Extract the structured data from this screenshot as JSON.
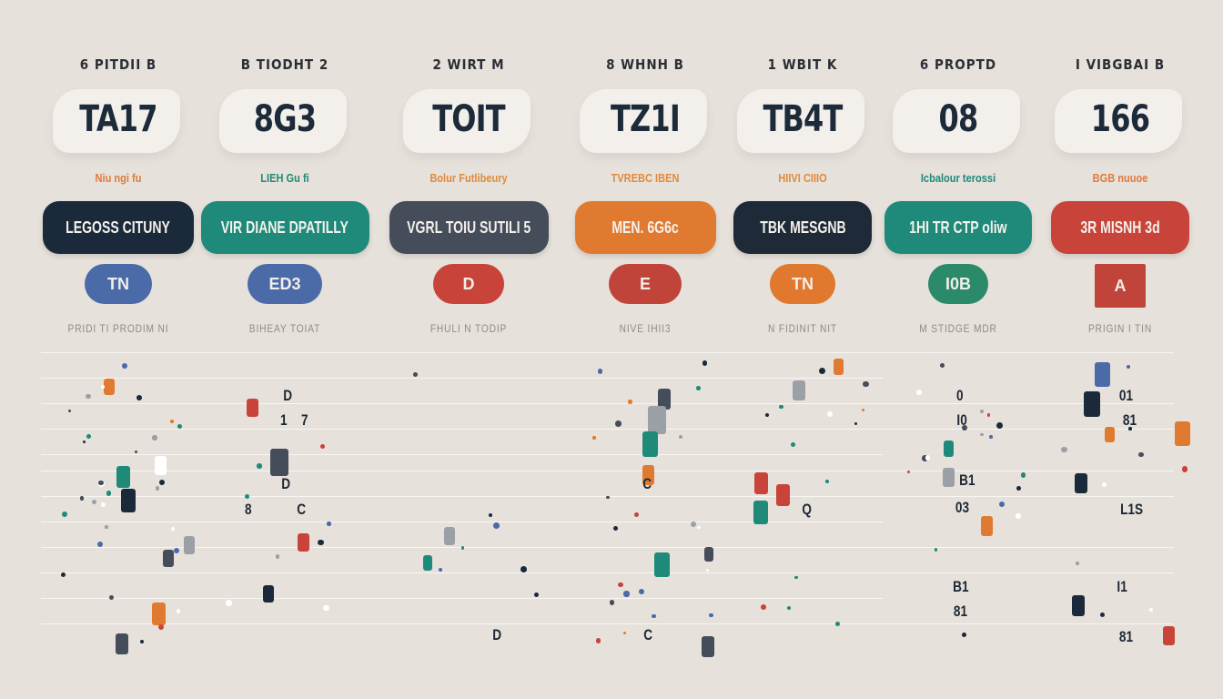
{
  "columns": [
    {
      "header": "6 PITDII B",
      "score": "TA17",
      "sub": "Niu ngi fu",
      "sub_color": "#e07a3a",
      "pill": "LEGOSS CITUNY",
      "pill_color": "#1b2a3a",
      "badge": "TN",
      "badge_color": "#4a6aa8",
      "foot": "PRIDI TI PRODIM NI"
    },
    {
      "header": "B TIODHT 2",
      "score": "8G3",
      "sub": "LIEH Gu fi",
      "sub_color": "#1f8a7a",
      "pill": "VIR DIANE DPATILLY",
      "pill_color": "#1f8a7a",
      "badge": "ED3",
      "badge_color": "#4a6aa8",
      "foot": "BIHEAY TOIAT"
    },
    {
      "header": "2 WIRT M",
      "score": "TOIT",
      "sub": "Bolur Futlibeury",
      "sub_color": "#e08a3a",
      "pill": "VGRL TOIU SUTILI 5",
      "pill_color": "#454c5a",
      "badge": "D",
      "badge_color": "#c8443a",
      "foot": "FHULI N TODIP"
    },
    {
      "header": "8 WHNH B",
      "score": "TZ1I",
      "sub": "TVREBC IBEN",
      "sub_color": "#e08a3a",
      "pill": "MEN. 6G6c",
      "pill_color": "#e07a30",
      "badge": "E",
      "badge_color": "#c0443a",
      "foot": "NIVE IHII3"
    },
    {
      "header": "1 WBIT K",
      "score": "TB4T",
      "sub": "HIIVI CIIIO",
      "sub_color": "#e08a3a",
      "pill": "TBK MESGNB",
      "pill_color": "#1e2a38",
      "badge": "TN",
      "badge_color": "#e0782e",
      "foot": "N FIDINIT NIT"
    },
    {
      "header": "6 PROPTD",
      "score": "08",
      "sub": "Icbalour terossi",
      "sub_color": "#1f8a7a",
      "pill": "1HI TR CTP oliw",
      "pill_color": "#1f8a7a",
      "badge": "I0B",
      "badge_color": "#2a8a6a",
      "foot": "M STIDGE MDR"
    },
    {
      "header": "I VIBGBAI B",
      "score": "166",
      "sub": "BGB nuuoe",
      "sub_color": "#e07a3a",
      "pill": "3R MISNH 3d",
      "pill_color": "#c8443a",
      "badge": "A",
      "badge_color": "#c0443a",
      "foot": "PRIGIN I TIN"
    }
  ],
  "grid_text": [
    "D",
    "1",
    "7",
    "D",
    "8",
    "C",
    "C",
    "Q",
    "D",
    "C",
    "0",
    "I0",
    "B1",
    "03",
    "01",
    "81",
    "L1S",
    "I1",
    "B1",
    "81",
    "81"
  ],
  "colors": {
    "navy": "#1b2a3a",
    "teal": "#1f8a7a",
    "orange": "#e07a30",
    "red": "#c8443a",
    "slate": "#454c5a",
    "blue": "#4a6aa8"
  }
}
